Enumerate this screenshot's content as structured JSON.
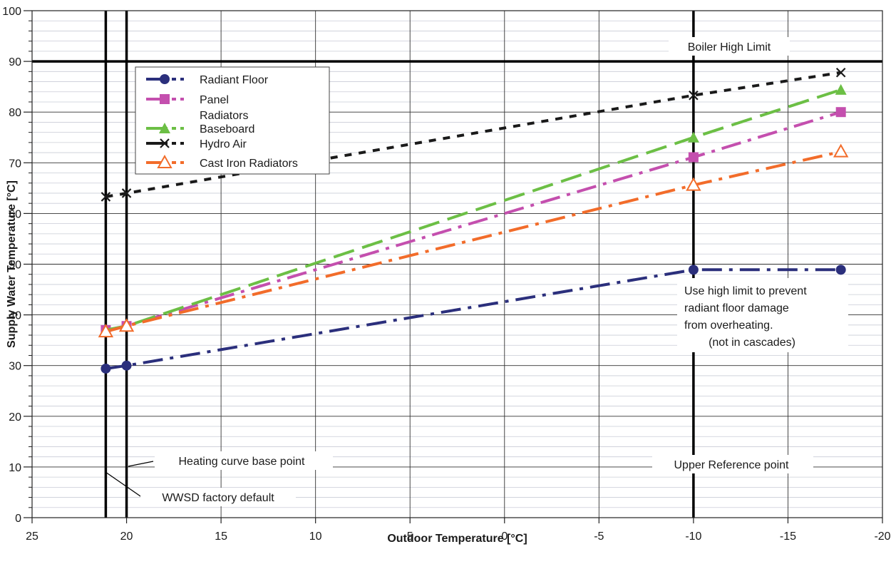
{
  "chart_data": {
    "type": "line",
    "title": "",
    "xlabel": "Outdoor Temperature [°C]",
    "ylabel": "Supply Water Temperature [°C]",
    "xlim": [
      25,
      -20
    ],
    "ylim": [
      0,
      100
    ],
    "x_ticks": [
      25,
      20,
      15,
      10,
      5,
      0,
      -5,
      -10,
      -15,
      -20
    ],
    "x_tick_labels": [
      "25",
      "20",
      "15",
      "10",
      "5",
      "0",
      "-5",
      "-10",
      "-15",
      "-20"
    ],
    "y_ticks": [
      0,
      10,
      20,
      30,
      40,
      50,
      60,
      70,
      80,
      90,
      100
    ],
    "y_tick_labels": [
      "0",
      "10",
      "20",
      "30",
      "40",
      "50",
      "60",
      "70",
      "80",
      "90",
      "100"
    ],
    "grid": true,
    "legend_position": "top-left",
    "series": [
      {
        "name": "Radiant Floor",
        "color": "#2b2f7c",
        "marker": "circle",
        "dash": "long-dash-dot",
        "points": [
          [
            21.1,
            29.4
          ],
          [
            20,
            30
          ],
          [
            -10,
            48.9
          ],
          [
            -17.8,
            48.9
          ]
        ]
      },
      {
        "name": "Panel Radiators",
        "color": "#c44fae",
        "marker": "square",
        "dash": "long-dash-dot",
        "points": [
          [
            21.1,
            37
          ],
          [
            20,
            37.8
          ],
          [
            -10,
            71.1
          ],
          [
            -17.8,
            80
          ]
        ]
      },
      {
        "name": "Baseboard",
        "color": "#6cbf45",
        "marker": "triangle",
        "dash": "long-dash",
        "points": [
          [
            21.1,
            37
          ],
          [
            20,
            37.8
          ],
          [
            -10,
            75
          ],
          [
            -17.8,
            84.4
          ]
        ]
      },
      {
        "name": "Hydro Air",
        "color": "#1a1a1a",
        "marker": "x",
        "dash": "dash",
        "points": [
          [
            21.1,
            63.3
          ],
          [
            20,
            64
          ],
          [
            -10,
            83.3
          ],
          [
            -17.8,
            87.8
          ]
        ]
      },
      {
        "name": "Cast Iron Radiators",
        "color": "#f26c2a",
        "marker": "open-triangle",
        "dash": "long-dash-dot",
        "points": [
          [
            21.1,
            36.7
          ],
          [
            20,
            37.8
          ],
          [
            -10,
            65.6
          ],
          [
            -17.8,
            72.2
          ]
        ]
      }
    ],
    "reference_lines": {
      "vertical": [
        21.1,
        20,
        -10
      ],
      "horizontal": [
        90
      ]
    },
    "annotations": [
      {
        "id": "boiler-high-limit",
        "text": "Boiler High Limit"
      },
      {
        "id": "high-limit-note",
        "lines": [
          "Use high limit to prevent",
          "radiant floor damage",
          "from overheating.",
          "(not in cascades)"
        ]
      },
      {
        "id": "heating-curve-base-point",
        "text": "Heating curve base point"
      },
      {
        "id": "wwsd-factory-default",
        "text": "WWSD factory default"
      },
      {
        "id": "upper-reference-point",
        "text": "Upper Reference point"
      }
    ],
    "legend_labels": [
      [
        "Radiant Floor"
      ],
      [
        "Panel",
        "Radiators"
      ],
      [
        "Baseboard"
      ],
      [
        "Hydro Air"
      ],
      [
        "Cast Iron Radiators"
      ]
    ]
  }
}
